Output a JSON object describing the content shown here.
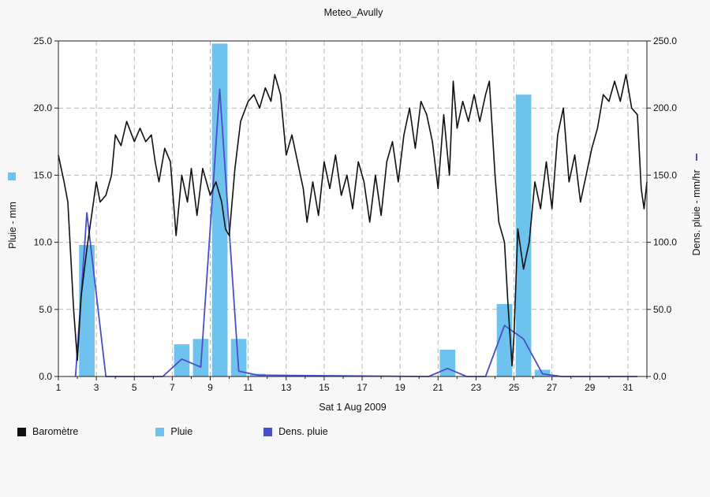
{
  "chart_data": {
    "type": "bar+line",
    "title": "Meteo_Avully",
    "xlabel": "Sat 1 Aug 2009",
    "ylabel_left": "Pluie - mm",
    "ylabel_right": "Dens. pluie - mm/hr",
    "x_ticks": [
      "1",
      "3",
      "5",
      "7",
      "9",
      "11",
      "13",
      "15",
      "17",
      "19",
      "21",
      "23",
      "25",
      "27",
      "29",
      "31"
    ],
    "xlim": [
      1,
      32
    ],
    "ylim_left": [
      0,
      25
    ],
    "ylim_right": [
      0,
      250
    ],
    "y_ticks_left": [
      "0.0",
      "5.0",
      "10.0",
      "15.0",
      "20.0",
      "25.0"
    ],
    "y_ticks_right": [
      "0.0",
      "50.0",
      "100.0",
      "150.0",
      "200.0",
      "250.0"
    ],
    "grid": true,
    "legend_position": "bottom",
    "colors": {
      "barometre": "#111111",
      "pluie": "#6ec2ee",
      "dens": "#4a4ecb"
    },
    "series": [
      {
        "name": "Pluie",
        "kind": "bar",
        "axis": "left",
        "points": [
          {
            "x": 2.5,
            "y": 9.8
          },
          {
            "x": 7.5,
            "y": 2.4
          },
          {
            "x": 8.5,
            "y": 2.8
          },
          {
            "x": 9.5,
            "y": 24.8
          },
          {
            "x": 10.5,
            "y": 2.8
          },
          {
            "x": 11.5,
            "y": 0.2
          },
          {
            "x": 21.5,
            "y": 2.0
          },
          {
            "x": 24.5,
            "y": 5.4
          },
          {
            "x": 25.5,
            "y": 21.0
          },
          {
            "x": 26.5,
            "y": 0.5
          }
        ]
      },
      {
        "name": "Dens. pluie",
        "kind": "line",
        "axis": "right",
        "points": [
          [
            1.9,
            0
          ],
          [
            2.5,
            122
          ],
          [
            3.5,
            0
          ],
          [
            6.5,
            0
          ],
          [
            7.5,
            13
          ],
          [
            8.5,
            7
          ],
          [
            9.5,
            214
          ],
          [
            10.5,
            4
          ],
          [
            11.5,
            1
          ],
          [
            20.5,
            0
          ],
          [
            21.5,
            6
          ],
          [
            22.5,
            0
          ],
          [
            23.5,
            0
          ],
          [
            24.5,
            38
          ],
          [
            25.5,
            28
          ],
          [
            26.5,
            2
          ],
          [
            27.5,
            0
          ],
          [
            31.5,
            0
          ]
        ]
      },
      {
        "name": "Baromètre",
        "kind": "line",
        "axis": "left",
        "points": [
          [
            1.0,
            16.5
          ],
          [
            1.3,
            14.5
          ],
          [
            1.5,
            13.0
          ],
          [
            1.8,
            5.0
          ],
          [
            2.0,
            1.2
          ],
          [
            2.2,
            6.0
          ],
          [
            2.5,
            9.5
          ],
          [
            2.8,
            12.5
          ],
          [
            3.0,
            14.5
          ],
          [
            3.2,
            13.0
          ],
          [
            3.5,
            13.5
          ],
          [
            3.8,
            15.0
          ],
          [
            4.0,
            18.0
          ],
          [
            4.3,
            17.2
          ],
          [
            4.6,
            19.0
          ],
          [
            5.0,
            17.5
          ],
          [
            5.3,
            18.5
          ],
          [
            5.6,
            17.5
          ],
          [
            5.9,
            18.0
          ],
          [
            6.1,
            16.0
          ],
          [
            6.3,
            14.5
          ],
          [
            6.6,
            17.0
          ],
          [
            6.9,
            16.0
          ],
          [
            7.2,
            10.5
          ],
          [
            7.5,
            15.0
          ],
          [
            7.8,
            13.0
          ],
          [
            8.0,
            15.5
          ],
          [
            8.3,
            12.0
          ],
          [
            8.6,
            15.5
          ],
          [
            9.0,
            13.5
          ],
          [
            9.3,
            14.5
          ],
          [
            9.6,
            13.0
          ],
          [
            9.8,
            11.0
          ],
          [
            10.0,
            10.5
          ],
          [
            10.3,
            15.5
          ],
          [
            10.6,
            19.0
          ],
          [
            11.0,
            20.5
          ],
          [
            11.3,
            21.0
          ],
          [
            11.6,
            20.0
          ],
          [
            11.9,
            21.5
          ],
          [
            12.2,
            20.5
          ],
          [
            12.4,
            22.5
          ],
          [
            12.7,
            21.0
          ],
          [
            13.0,
            16.5
          ],
          [
            13.3,
            18.0
          ],
          [
            13.6,
            16.0
          ],
          [
            13.9,
            14.0
          ],
          [
            14.1,
            11.5
          ],
          [
            14.4,
            14.5
          ],
          [
            14.7,
            12.0
          ],
          [
            15.0,
            16.0
          ],
          [
            15.3,
            14.0
          ],
          [
            15.6,
            16.5
          ],
          [
            15.9,
            13.5
          ],
          [
            16.2,
            15.0
          ],
          [
            16.5,
            12.5
          ],
          [
            16.8,
            16.0
          ],
          [
            17.1,
            14.5
          ],
          [
            17.4,
            11.5
          ],
          [
            17.7,
            15.0
          ],
          [
            18.0,
            12.0
          ],
          [
            18.3,
            16.0
          ],
          [
            18.6,
            17.5
          ],
          [
            18.9,
            14.5
          ],
          [
            19.2,
            18.0
          ],
          [
            19.5,
            20.0
          ],
          [
            19.8,
            17.0
          ],
          [
            20.1,
            20.5
          ],
          [
            20.4,
            19.5
          ],
          [
            20.7,
            17.5
          ],
          [
            21.0,
            14.0
          ],
          [
            21.3,
            19.5
          ],
          [
            21.6,
            15.0
          ],
          [
            21.8,
            22.0
          ],
          [
            22.0,
            18.5
          ],
          [
            22.3,
            20.5
          ],
          [
            22.6,
            19.0
          ],
          [
            22.9,
            21.0
          ],
          [
            23.2,
            19.0
          ],
          [
            23.5,
            21.0
          ],
          [
            23.7,
            22.0
          ],
          [
            24.0,
            15.0
          ],
          [
            24.2,
            11.5
          ],
          [
            24.5,
            10.0
          ],
          [
            24.7,
            5.0
          ],
          [
            24.9,
            0.8
          ],
          [
            25.0,
            3.0
          ],
          [
            25.2,
            11.0
          ],
          [
            25.5,
            8.0
          ],
          [
            25.8,
            10.0
          ],
          [
            26.1,
            14.5
          ],
          [
            26.4,
            12.5
          ],
          [
            26.7,
            16.0
          ],
          [
            27.0,
            12.5
          ],
          [
            27.3,
            18.0
          ],
          [
            27.6,
            20.0
          ],
          [
            27.9,
            14.5
          ],
          [
            28.2,
            16.5
          ],
          [
            28.5,
            13.0
          ],
          [
            28.8,
            15.0
          ],
          [
            29.1,
            17.0
          ],
          [
            29.4,
            18.5
          ],
          [
            29.7,
            21.0
          ],
          [
            30.0,
            20.5
          ],
          [
            30.3,
            22.0
          ],
          [
            30.6,
            20.5
          ],
          [
            30.9,
            22.5
          ],
          [
            31.2,
            20.0
          ],
          [
            31.5,
            19.5
          ],
          [
            31.7,
            14.0
          ],
          [
            31.85,
            12.5
          ],
          [
            32.0,
            14.5
          ]
        ]
      }
    ]
  },
  "legend": {
    "items": [
      {
        "label": "Baromètre",
        "color": "#111111"
      },
      {
        "label": "Pluie",
        "color": "#6ec2ee"
      },
      {
        "label": "Dens. pluie",
        "color": "#4a4ecb"
      }
    ]
  }
}
